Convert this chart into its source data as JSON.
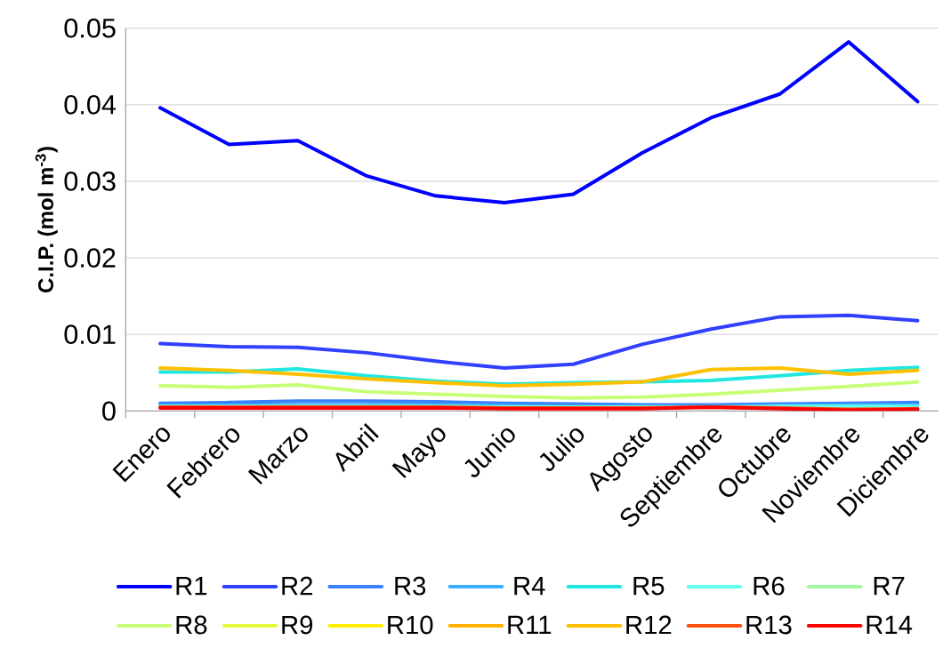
{
  "chart_data": {
    "type": "line",
    "ylabel": "C.I.P. (mol m$^{-3}$)",
    "categories": [
      "Enero",
      "Febrero",
      "Marzo",
      "Abril",
      "Mayo",
      "Junio",
      "Julio",
      "Agosto",
      "Septiembre",
      "Octubre",
      "Noviembre",
      "Diciembre"
    ],
    "ylim": [
      0,
      0.05
    ],
    "yticks": [
      {
        "value": 0,
        "label": "0"
      },
      0.01,
      0.02,
      0.03,
      0.04,
      0.05
    ],
    "grid": "y",
    "legend": "bottom",
    "marker": "none",
    "line_style": "solid",
    "series": [
      {
        "name": "R1",
        "color": "#0000ff",
        "values": [
          0.0396,
          0.0348,
          0.0353,
          0.0307,
          0.0281,
          0.0272,
          0.0283,
          0.0337,
          0.0383,
          0.0414,
          0.0482,
          0.0404
        ]
      },
      {
        "name": "R2",
        "color": "#3040ff",
        "values": [
          0.0088,
          0.0084,
          0.0083,
          0.0076,
          0.0065,
          0.0056,
          0.0061,
          0.0087,
          0.0107,
          0.0123,
          0.0125,
          0.0118
        ]
      },
      {
        "name": "R3",
        "color": "#3a80ff",
        "values": [
          0.001,
          0.0011,
          0.0013,
          0.0013,
          0.0012,
          0.001,
          0.0009,
          0.0008,
          0.0008,
          0.0009,
          0.001,
          0.0011
        ]
      },
      {
        "name": "R4",
        "color": "#3ab0ff",
        "values": [
          0.0007,
          0.0007,
          0.0008,
          0.0008,
          0.0008,
          0.0007,
          0.0006,
          0.0006,
          0.0006,
          0.0007,
          0.0008,
          0.0008
        ]
      },
      {
        "name": "R5",
        "color": "#20e8e0",
        "values": [
          0.0051,
          0.0051,
          0.0055,
          0.0046,
          0.0039,
          0.0035,
          0.0037,
          0.0038,
          0.004,
          0.0046,
          0.0053,
          0.0057
        ]
      },
      {
        "name": "R6",
        "color": "#60fff0",
        "values": [
          0.0006,
          0.0006,
          0.0006,
          0.0006,
          0.0006,
          0.0005,
          0.0005,
          0.0005,
          0.0005,
          0.0006,
          0.0006,
          0.0006
        ]
      },
      {
        "name": "R7",
        "color": "#a0f8a0",
        "values": [
          null,
          null,
          null,
          null,
          null,
          null,
          null,
          null,
          null,
          null,
          null,
          null
        ]
      },
      {
        "name": "R8",
        "color": "#c8ff78",
        "values": [
          0.0033,
          0.0031,
          0.0034,
          0.0025,
          0.0022,
          0.0019,
          0.0017,
          0.0018,
          0.0022,
          0.0027,
          0.0032,
          0.0038
        ]
      },
      {
        "name": "R9",
        "color": "#e8f840",
        "values": [
          null,
          null,
          null,
          null,
          null,
          null,
          null,
          null,
          null,
          null,
          null,
          null
        ]
      },
      {
        "name": "R10",
        "color": "#ffee00",
        "values": [
          null,
          null,
          null,
          null,
          null,
          null,
          null,
          null,
          null,
          null,
          null,
          null
        ]
      },
      {
        "name": "R11",
        "color": "#ffb000",
        "values": [
          null,
          null,
          null,
          null,
          null,
          null,
          null,
          null,
          null,
          null,
          null,
          null
        ]
      },
      {
        "name": "R12",
        "color": "#ffc000",
        "values": [
          0.0056,
          0.0053,
          0.0048,
          0.0042,
          0.0037,
          0.0033,
          0.0035,
          0.0038,
          0.0054,
          0.0056,
          0.0048,
          0.0053
        ]
      },
      {
        "name": "R13",
        "color": "#ff5010",
        "values": [
          0.0005,
          0.0005,
          0.0005,
          0.0005,
          0.0005,
          0.0004,
          0.0004,
          0.0004,
          0.0005,
          0.0004,
          0.0002,
          0.0003
        ]
      },
      {
        "name": "R14",
        "color": "#ff0000",
        "values": [
          0.0004,
          0.0004,
          0.0004,
          0.0004,
          0.0004,
          0.0003,
          0.0003,
          0.0003,
          0.0005,
          0.0003,
          0.0001,
          0.0002
        ]
      }
    ]
  }
}
